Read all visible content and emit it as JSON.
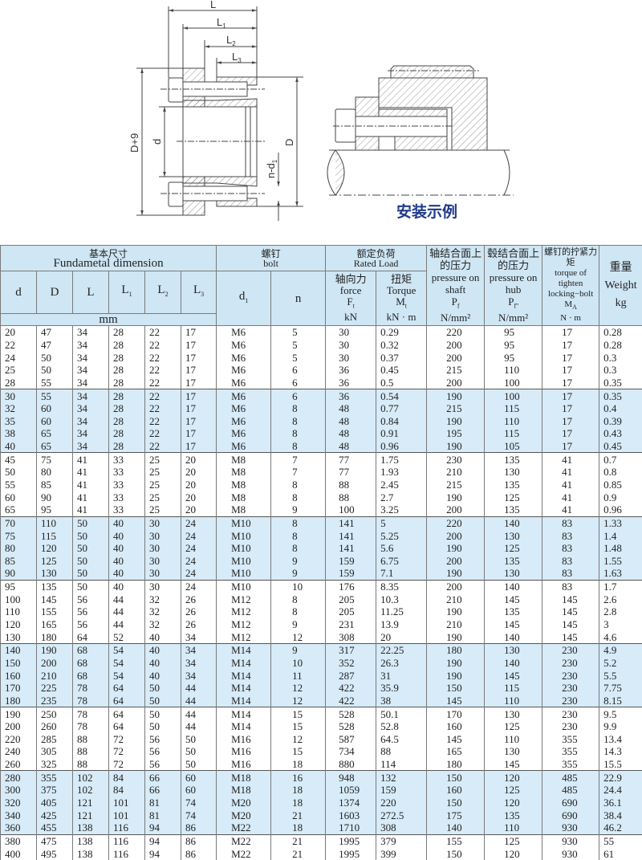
{
  "drawing": {
    "labels": {
      "L": "L",
      "L1": "L",
      "L1_sub": "1",
      "L2": "L",
      "L2_sub": "2",
      "L3": "L",
      "L3_sub": "3",
      "D9": "D+9",
      "d": "d",
      "D": "D",
      "nd1": "n-d",
      "nd1_sub": "1"
    },
    "caption": "安装示例",
    "caption_color": "#1f3a8a"
  },
  "table": {
    "group_headers": {
      "dimension_cn": "基本尺寸",
      "dimension_en": "Fundametal dimension",
      "bolt_cn": "螺钉",
      "bolt_en": "bolt",
      "load_cn": "额定负荷",
      "load_en": "Rated Load",
      "shaft_cn": "轴结合面上的压力",
      "shaft_en": "pressure on shaft",
      "shaft_sym": "P",
      "shaft_sym_sub": "f",
      "shaft_unit": "N/mm²",
      "hub_cn": "毂结合面上的压力",
      "hub_en": "pressure on hub",
      "hub_sym": "P",
      "hub_sym_sub": "f''",
      "hub_unit": "N/mm²",
      "torque_cn": "螺钉的拧紧力矩",
      "torque_en": "torque of tighten locking−bolt",
      "torque_sym": "M",
      "torque_sym_sub": "A",
      "torque_unit": "N · m",
      "weight_cn": "重量",
      "weight_en": "Weight",
      "weight_unit": "kg"
    },
    "columns": {
      "d": "d",
      "D": "D",
      "L": "L",
      "L1": "L",
      "L1_sub": "1",
      "L2": "L",
      "L2_sub": "2",
      "L3": "L",
      "L3_sub": "3",
      "d1": "d",
      "d1_sub": "1",
      "n": "n",
      "force_cn": "轴向力",
      "force_en": "force",
      "force_sym": "F",
      "force_sym_sub": "t",
      "force_unit": "kN",
      "torque_cn": "扭矩",
      "torque_en": "Torque",
      "torque_sym": "M",
      "torque_sym_sub": "t",
      "torque_unit": "kN · m",
      "mm": "mm"
    },
    "rows": [
      [
        "20",
        "47",
        "34",
        "28",
        "22",
        "17",
        "M6",
        "5",
        "30",
        "0.29",
        "220",
        "95",
        "17",
        "0.28"
      ],
      [
        "22",
        "47",
        "34",
        "28",
        "22",
        "17",
        "M6",
        "5",
        "30",
        "0.32",
        "200",
        "95",
        "17",
        "0.28"
      ],
      [
        "24",
        "50",
        "34",
        "28",
        "22",
        "17",
        "M6",
        "5",
        "30",
        "0.37",
        "200",
        "95",
        "17",
        "0.3"
      ],
      [
        "25",
        "50",
        "34",
        "28",
        "22",
        "17",
        "M6",
        "6",
        "36",
        "0.45",
        "215",
        "110",
        "17",
        "0.3"
      ],
      [
        "28",
        "55",
        "34",
        "28",
        "22",
        "17",
        "M6",
        "6",
        "36",
        "0.5",
        "200",
        "100",
        "17",
        "0.35"
      ],
      [
        "30",
        "55",
        "34",
        "28",
        "22",
        "17",
        "M6",
        "6",
        "36",
        "0.54",
        "190",
        "100",
        "17",
        "0.35"
      ],
      [
        "32",
        "60",
        "34",
        "28",
        "22",
        "17",
        "M6",
        "8",
        "48",
        "0.77",
        "215",
        "115",
        "17",
        "0.4"
      ],
      [
        "35",
        "60",
        "34",
        "28",
        "22",
        "17",
        "M6",
        "8",
        "48",
        "0.84",
        "190",
        "110",
        "17",
        "0.39"
      ],
      [
        "38",
        "65",
        "34",
        "28",
        "22",
        "17",
        "M6",
        "8",
        "48",
        "0.91",
        "195",
        "115",
        "17",
        "0.43"
      ],
      [
        "40",
        "65",
        "34",
        "28",
        "22",
        "17",
        "M6",
        "8",
        "48",
        "0.96",
        "190",
        "105",
        "17",
        "0.45"
      ],
      [
        "45",
        "75",
        "41",
        "33",
        "25",
        "20",
        "M8",
        "7",
        "77",
        "1.75",
        "230",
        "135",
        "41",
        "0.7"
      ],
      [
        "50",
        "80",
        "41",
        "33",
        "25",
        "20",
        "M8",
        "7",
        "77",
        "1.93",
        "210",
        "130",
        "41",
        "0.8"
      ],
      [
        "55",
        "85",
        "41",
        "33",
        "25",
        "20",
        "M8",
        "8",
        "88",
        "2.45",
        "215",
        "135",
        "41",
        "0.85"
      ],
      [
        "60",
        "90",
        "41",
        "33",
        "25",
        "20",
        "M8",
        "8",
        "88",
        "2.7",
        "190",
        "125",
        "41",
        "0.9"
      ],
      [
        "65",
        "95",
        "41",
        "33",
        "25",
        "20",
        "M8",
        "9",
        "100",
        "3.25",
        "200",
        "135",
        "41",
        "0.96"
      ],
      [
        "70",
        "110",
        "50",
        "40",
        "30",
        "24",
        "M10",
        "8",
        "141",
        "5",
        "220",
        "140",
        "83",
        "1.33"
      ],
      [
        "75",
        "115",
        "50",
        "40",
        "30",
        "24",
        "M10",
        "8",
        "141",
        "5.25",
        "200",
        "130",
        "83",
        "1.4"
      ],
      [
        "80",
        "120",
        "50",
        "40",
        "30",
        "24",
        "M10",
        "8",
        "141",
        "5.6",
        "190",
        "125",
        "83",
        "1.48"
      ],
      [
        "85",
        "125",
        "50",
        "40",
        "30",
        "24",
        "M10",
        "9",
        "159",
        "6.75",
        "200",
        "135",
        "83",
        "1.55"
      ],
      [
        "90",
        "130",
        "50",
        "40",
        "30",
        "24",
        "M10",
        "9",
        "159",
        "7.1",
        "190",
        "130",
        "83",
        "1.63"
      ],
      [
        "95",
        "135",
        "50",
        "40",
        "30",
        "24",
        "M10",
        "10",
        "176",
        "8.35",
        "200",
        "140",
        "83",
        "1.7"
      ],
      [
        "100",
        "145",
        "56",
        "44",
        "32",
        "26",
        "M12",
        "8",
        "205",
        "10.3",
        "210",
        "145",
        "145",
        "2.6"
      ],
      [
        "110",
        "155",
        "56",
        "44",
        "32",
        "26",
        "M12",
        "8",
        "205",
        "11.25",
        "190",
        "135",
        "145",
        "2.8"
      ],
      [
        "120",
        "165",
        "56",
        "44",
        "32",
        "26",
        "M12",
        "9",
        "231",
        "13.9",
        "210",
        "145",
        "145",
        "3"
      ],
      [
        "130",
        "180",
        "64",
        "52",
        "40",
        "34",
        "M12",
        "12",
        "308",
        "20",
        "190",
        "140",
        "145",
        "4.6"
      ],
      [
        "140",
        "190",
        "68",
        "54",
        "40",
        "34",
        "M14",
        "9",
        "317",
        "22.25",
        "180",
        "130",
        "230",
        "4.9"
      ],
      [
        "150",
        "200",
        "68",
        "54",
        "40",
        "34",
        "M14",
        "10",
        "352",
        "26.3",
        "190",
        "140",
        "230",
        "5.2"
      ],
      [
        "160",
        "210",
        "68",
        "54",
        "40",
        "34",
        "M14",
        "11",
        "287",
        "31",
        "190",
        "145",
        "230",
        "5.5"
      ],
      [
        "170",
        "225",
        "78",
        "64",
        "50",
        "44",
        "M14",
        "12",
        "422",
        "35.9",
        "150",
        "115",
        "230",
        "7.75"
      ],
      [
        "180",
        "235",
        "78",
        "64",
        "50",
        "44",
        "M14",
        "12",
        "422",
        "38",
        "145",
        "110",
        "230",
        "8.15"
      ],
      [
        "190",
        "250",
        "78",
        "64",
        "50",
        "44",
        "M14",
        "15",
        "528",
        "50.1",
        "170",
        "130",
        "230",
        "9.5"
      ],
      [
        "200",
        "260",
        "78",
        "64",
        "50",
        "44",
        "M14",
        "15",
        "528",
        "52.8",
        "160",
        "125",
        "230",
        "9.9"
      ],
      [
        "220",
        "285",
        "88",
        "72",
        "56",
        "50",
        "M16",
        "12",
        "587",
        "64.5",
        "145",
        "110",
        "355",
        "13.4"
      ],
      [
        "240",
        "305",
        "88",
        "72",
        "56",
        "50",
        "M16",
        "15",
        "734",
        "88",
        "165",
        "130",
        "355",
        "14.3"
      ],
      [
        "260",
        "325",
        "88",
        "72",
        "56",
        "50",
        "M16",
        "18",
        "880",
        "114",
        "180",
        "145",
        "355",
        "15.5"
      ],
      [
        "280",
        "355",
        "102",
        "84",
        "66",
        "60",
        "M18",
        "16",
        "948",
        "132",
        "150",
        "120",
        "485",
        "22.9"
      ],
      [
        "300",
        "375",
        "102",
        "84",
        "66",
        "60",
        "M18",
        "18",
        "1059",
        "159",
        "160",
        "125",
        "485",
        "24.4"
      ],
      [
        "320",
        "405",
        "121",
        "101",
        "81",
        "74",
        "M20",
        "18",
        "1374",
        "220",
        "150",
        "120",
        "690",
        "36.1"
      ],
      [
        "340",
        "425",
        "121",
        "101",
        "81",
        "74",
        "M20",
        "21",
        "1603",
        "272.5",
        "175",
        "135",
        "690",
        "38.4"
      ],
      [
        "360",
        "455",
        "138",
        "116",
        "94",
        "86",
        "M22",
        "18",
        "1710",
        "308",
        "140",
        "110",
        "930",
        "46.2"
      ],
      [
        "380",
        "475",
        "138",
        "116",
        "94",
        "86",
        "M22",
        "21",
        "1995",
        "379",
        "155",
        "125",
        "930",
        "55"
      ],
      [
        "400",
        "495",
        "138",
        "116",
        "94",
        "86",
        "M22",
        "21",
        "1995",
        "399",
        "150",
        "120",
        "930",
        "61"
      ]
    ],
    "colors": {
      "header_bg": "#cfe6f4",
      "band_bg": "#d7ebf8"
    }
  }
}
